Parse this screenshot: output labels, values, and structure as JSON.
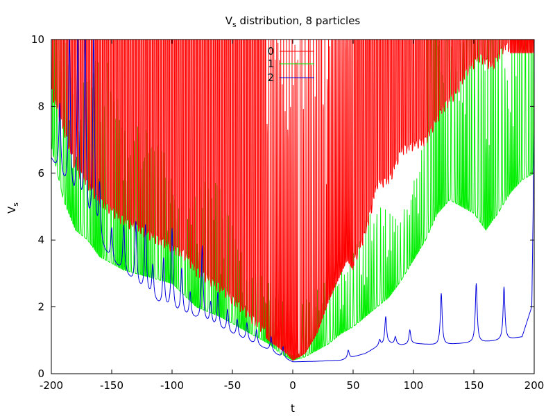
{
  "chart_data": {
    "type": "line",
    "title": "V",
    "title_sub": "s",
    "title_rest": " distribution, 8 particles",
    "xlabel": "t",
    "ylabel": "V",
    "ylabel_sub": "s",
    "xlim": [
      -200,
      200
    ],
    "ylim": [
      0,
      10
    ],
    "x_ticks": [
      -200,
      -150,
      -100,
      -50,
      0,
      50,
      100,
      150,
      200
    ],
    "x_tick_labels": [
      "-200",
      "-150",
      "-100",
      "-50",
      "0",
      "50",
      "100",
      "150",
      "200"
    ],
    "y_ticks": [
      0,
      2,
      4,
      6,
      8,
      10
    ],
    "y_tick_labels": [
      "0",
      "2",
      "4",
      "6",
      "8",
      "10"
    ],
    "grid": false,
    "legend_position": "top-center",
    "series": [
      {
        "name": "0",
        "color": "#ff0000",
        "envelope": [
          {
            "t": -200,
            "v": 8.3
          },
          {
            "t": -180,
            "v": 6.0
          },
          {
            "t": -160,
            "v": 5.0
          },
          {
            "t": -140,
            "v": 4.4
          },
          {
            "t": -120,
            "v": 4.0
          },
          {
            "t": -100,
            "v": 3.6
          },
          {
            "t": -90,
            "v": 3.4
          },
          {
            "t": -80,
            "v": 2.9
          },
          {
            "t": -60,
            "v": 2.4
          },
          {
            "t": -40,
            "v": 1.7
          },
          {
            "t": -20,
            "v": 1.0
          },
          {
            "t": -5,
            "v": 0.6
          },
          {
            "t": 0,
            "v": 0.4
          },
          {
            "t": 10,
            "v": 0.6
          },
          {
            "t": 20,
            "v": 1.2
          },
          {
            "t": 30,
            "v": 2.2
          },
          {
            "t": 40,
            "v": 3.0
          },
          {
            "t": 45,
            "v": 3.4
          },
          {
            "t": 50,
            "v": 3.1
          },
          {
            "t": 60,
            "v": 4.0
          },
          {
            "t": 70,
            "v": 5.5
          },
          {
            "t": 80,
            "v": 5.6
          },
          {
            "t": 90,
            "v": 6.5
          },
          {
            "t": 110,
            "v": 6.8
          },
          {
            "t": 125,
            "v": 7.8
          },
          {
            "t": 135,
            "v": 8.2
          },
          {
            "t": 145,
            "v": 8.9
          },
          {
            "t": 155,
            "v": 9.3
          },
          {
            "t": 165,
            "v": 9.0
          },
          {
            "t": 175,
            "v": 9.6
          }
        ],
        "filled_ranges": [
          [
            -200,
            -85
          ],
          [
            -85,
            -20
          ],
          [
            50,
            180
          ]
        ],
        "gap_ranges": [
          [
            -22,
            -15
          ],
          [
            5,
            28
          ]
        ]
      },
      {
        "name": "1",
        "color": "#00ee00",
        "baseline": [
          {
            "t": -200,
            "v": 6.8
          },
          {
            "t": -190,
            "v": 5.2
          },
          {
            "t": -180,
            "v": 4.3
          },
          {
            "t": -170,
            "v": 4.0
          },
          {
            "t": -160,
            "v": 3.5
          },
          {
            "t": -140,
            "v": 3.1
          },
          {
            "t": -120,
            "v": 2.9
          },
          {
            "t": -100,
            "v": 2.7
          },
          {
            "t": -80,
            "v": 2.0
          },
          {
            "t": -60,
            "v": 1.7
          },
          {
            "t": -40,
            "v": 1.3
          },
          {
            "t": -20,
            "v": 0.9
          },
          {
            "t": -10,
            "v": 0.6
          },
          {
            "t": 0,
            "v": 0.4
          },
          {
            "t": 10,
            "v": 0.5
          },
          {
            "t": 20,
            "v": 0.7
          },
          {
            "t": 30,
            "v": 0.9
          },
          {
            "t": 40,
            "v": 1.2
          },
          {
            "t": 50,
            "v": 1.4
          },
          {
            "t": 60,
            "v": 1.7
          },
          {
            "t": 70,
            "v": 2.0
          },
          {
            "t": 80,
            "v": 2.3
          },
          {
            "t": 90,
            "v": 2.8
          },
          {
            "t": 100,
            "v": 3.4
          },
          {
            "t": 110,
            "v": 4.0
          },
          {
            "t": 120,
            "v": 4.8
          },
          {
            "t": 130,
            "v": 5.2
          },
          {
            "t": 140,
            "v": 5.0
          },
          {
            "t": 150,
            "v": 4.8
          },
          {
            "t": 160,
            "v": 4.3
          },
          {
            "t": 170,
            "v": 4.8
          },
          {
            "t": 180,
            "v": 5.4
          },
          {
            "t": 190,
            "v": 5.8
          },
          {
            "t": 200,
            "v": 6.0
          }
        ]
      },
      {
        "name": "2",
        "color": "#0000dd",
        "baseline": [
          {
            "t": -200,
            "v": 6.4
          },
          {
            "t": -190,
            "v": 5.6
          },
          {
            "t": -180,
            "v": 4.8
          },
          {
            "t": -170,
            "v": 4.2
          },
          {
            "t": -160,
            "v": 3.8
          },
          {
            "t": -150,
            "v": 3.3
          },
          {
            "t": -140,
            "v": 3.0
          },
          {
            "t": -130,
            "v": 2.6
          },
          {
            "t": -120,
            "v": 2.3
          },
          {
            "t": -110,
            "v": 2.0
          },
          {
            "t": -100,
            "v": 1.8
          },
          {
            "t": -90,
            "v": 1.7
          },
          {
            "t": -80,
            "v": 1.6
          },
          {
            "t": -60,
            "v": 1.3
          },
          {
            "t": -40,
            "v": 1.0
          },
          {
            "t": -20,
            "v": 0.7
          },
          {
            "t": -10,
            "v": 0.5
          },
          {
            "t": 0,
            "v": 0.35
          },
          {
            "t": 20,
            "v": 0.37
          },
          {
            "t": 40,
            "v": 0.4
          },
          {
            "t": 60,
            "v": 0.6
          },
          {
            "t": 70,
            "v": 0.8
          },
          {
            "t": 80,
            "v": 0.9
          },
          {
            "t": 90,
            "v": 0.85
          },
          {
            "t": 100,
            "v": 0.9
          },
          {
            "t": 120,
            "v": 0.85
          },
          {
            "t": 140,
            "v": 0.9
          },
          {
            "t": 160,
            "v": 0.95
          },
          {
            "t": 175,
            "v": 1.0
          },
          {
            "t": 190,
            "v": 1.1
          },
          {
            "t": 198,
            "v": 2.0
          },
          {
            "t": 200,
            "v": 7.3
          }
        ],
        "spikes": [
          {
            "t": -193,
            "v": 8.0
          },
          {
            "t": -185,
            "v": 10.0
          },
          {
            "t": -178,
            "v": 10.0
          },
          {
            "t": -172,
            "v": 10.0
          },
          {
            "t": -165,
            "v": 10.0
          },
          {
            "t": -160,
            "v": 5.5
          },
          {
            "t": -150,
            "v": 4.3
          },
          {
            "t": -140,
            "v": 4.4
          },
          {
            "t": -130,
            "v": 4.5
          },
          {
            "t": -122,
            "v": 4.4
          },
          {
            "t": -116,
            "v": 3.2
          },
          {
            "t": -107,
            "v": 3.4
          },
          {
            "t": -100,
            "v": 4.3
          },
          {
            "t": -92,
            "v": 3.1
          },
          {
            "t": -85,
            "v": 2.4
          },
          {
            "t": -75,
            "v": 3.8
          },
          {
            "t": -68,
            "v": 2.1
          },
          {
            "t": -62,
            "v": 2.4
          },
          {
            "t": -54,
            "v": 1.9
          },
          {
            "t": -46,
            "v": 1.6
          },
          {
            "t": -38,
            "v": 1.5
          },
          {
            "t": -30,
            "v": 1.3
          },
          {
            "t": -18,
            "v": 1.1
          },
          {
            "t": -8,
            "v": 0.8
          },
          {
            "t": 46,
            "v": 0.7
          },
          {
            "t": 72,
            "v": 1.0
          },
          {
            "t": 77,
            "v": 1.7
          },
          {
            "t": 85,
            "v": 1.1
          },
          {
            "t": 97,
            "v": 1.3
          },
          {
            "t": 123,
            "v": 2.4
          },
          {
            "t": 152,
            "v": 2.7
          },
          {
            "t": 175,
            "v": 2.6
          }
        ]
      }
    ]
  }
}
